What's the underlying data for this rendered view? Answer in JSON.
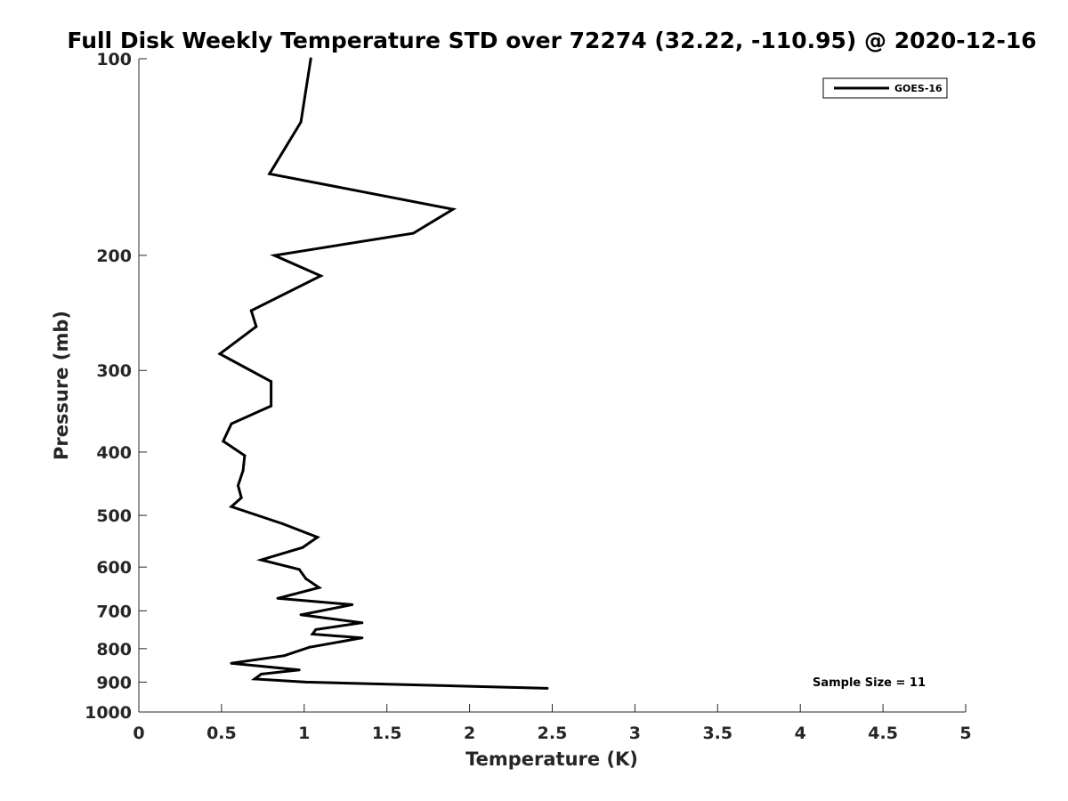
{
  "chart_data": {
    "type": "line",
    "title": "Full Disk Weekly Temperature STD over 72274 (32.22, -110.95) @ 2020-12-16",
    "xlabel": "Temperature (K)",
    "ylabel": "Pressure (mb)",
    "xlim": [
      0,
      5
    ],
    "ylim": [
      100,
      1000
    ],
    "y_scale": "log",
    "y_reversed": true,
    "x_ticks": [
      "0",
      "0.5",
      "1",
      "1.5",
      "2",
      "2.5",
      "3",
      "3.5",
      "4",
      "4.5",
      "5"
    ],
    "y_ticks": [
      "100",
      "200",
      "300",
      "400",
      "500",
      "600",
      "700",
      "800",
      "900",
      "1000"
    ],
    "grid": false,
    "legend": {
      "position": "top-right",
      "entries": [
        "GOES-16"
      ]
    },
    "annotation": "Sample Size = 11",
    "series": [
      {
        "name": "GOES-16",
        "color": "#000000",
        "points": [
          [
            1.04,
            100
          ],
          [
            0.98,
            125
          ],
          [
            0.79,
            150
          ],
          [
            1.9,
            170
          ],
          [
            1.66,
            185
          ],
          [
            0.82,
            200
          ],
          [
            1.1,
            215
          ],
          [
            0.68,
            243
          ],
          [
            0.71,
            257
          ],
          [
            0.49,
            283
          ],
          [
            0.8,
            312
          ],
          [
            0.8,
            340
          ],
          [
            0.56,
            362
          ],
          [
            0.51,
            385
          ],
          [
            0.64,
            405
          ],
          [
            0.63,
            427
          ],
          [
            0.6,
            450
          ],
          [
            0.62,
            470
          ],
          [
            0.56,
            485
          ],
          [
            0.87,
            515
          ],
          [
            1.08,
            540
          ],
          [
            0.99,
            560
          ],
          [
            0.74,
            585
          ],
          [
            0.97,
            605
          ],
          [
            1.01,
            625
          ],
          [
            1.09,
            645
          ],
          [
            0.84,
            670
          ],
          [
            1.29,
            685
          ],
          [
            0.98,
            710
          ],
          [
            1.35,
            730
          ],
          [
            1.07,
            748
          ],
          [
            1.05,
            760
          ],
          [
            1.35,
            770
          ],
          [
            1.03,
            796
          ],
          [
            0.88,
            820
          ],
          [
            0.56,
            842
          ],
          [
            0.97,
            862
          ],
          [
            0.74,
            875
          ],
          [
            0.7,
            890
          ],
          [
            1.01,
            900
          ],
          [
            2.47,
            920
          ]
        ]
      }
    ]
  }
}
